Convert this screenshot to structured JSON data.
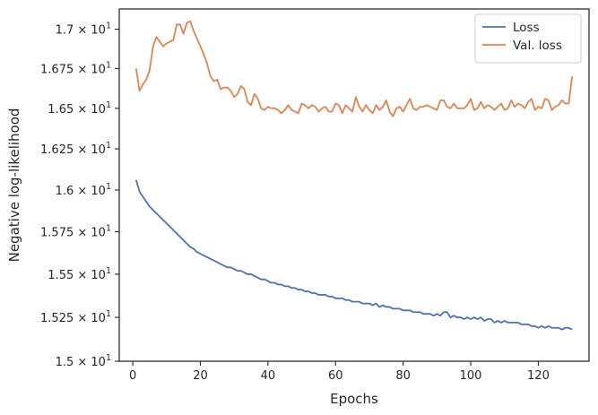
{
  "chart_data": {
    "type": "line",
    "xlabel": "Epochs",
    "ylabel": "Negative log-likelihood",
    "xlim": [
      -4,
      135
    ],
    "ylim": [
      15.0,
      17.13
    ],
    "y_scale": "log",
    "grid": false,
    "legend_position": "top-right",
    "x_ticks": [
      0,
      20,
      40,
      60,
      80,
      100,
      120
    ],
    "x_tick_labels": [
      "0",
      "20",
      "40",
      "60",
      "80",
      "100",
      "120"
    ],
    "y_ticks": [
      15.0,
      15.25,
      15.5,
      15.75,
      16.0,
      16.25,
      16.5,
      16.75,
      17.0
    ],
    "y_tick_mantissas": [
      "1.5",
      "1.525",
      "1.55",
      "1.575",
      "1.6",
      "1.625",
      "1.65",
      "1.675",
      "1.7"
    ],
    "y_tick_base": "× 10",
    "y_tick_exponent": "1",
    "series": [
      {
        "name": "Loss",
        "color": "#4c72b0",
        "x": [
          1,
          2,
          3,
          4,
          5,
          6,
          7,
          8,
          9,
          10,
          11,
          12,
          13,
          14,
          15,
          16,
          17,
          18,
          19,
          20,
          21,
          22,
          23,
          24,
          25,
          26,
          27,
          28,
          29,
          30,
          31,
          32,
          33,
          34,
          35,
          36,
          37,
          38,
          39,
          40,
          41,
          42,
          43,
          44,
          45,
          46,
          47,
          48,
          49,
          50,
          51,
          52,
          53,
          54,
          55,
          56,
          57,
          58,
          59,
          60,
          61,
          62,
          63,
          64,
          65,
          66,
          67,
          68,
          69,
          70,
          71,
          72,
          73,
          74,
          75,
          76,
          77,
          78,
          79,
          80,
          81,
          82,
          83,
          84,
          85,
          86,
          87,
          88,
          89,
          90,
          91,
          92,
          93,
          94,
          95,
          96,
          97,
          98,
          99,
          100,
          101,
          102,
          103,
          104,
          105,
          106,
          107,
          108,
          109,
          110,
          111,
          112,
          113,
          114,
          115,
          116,
          117,
          118,
          119,
          120,
          121,
          122,
          123,
          124,
          125,
          126,
          127,
          128,
          129,
          130
        ],
        "values": [
          16.06,
          15.99,
          15.96,
          15.93,
          15.9,
          15.88,
          15.86,
          15.84,
          15.82,
          15.8,
          15.78,
          15.76,
          15.74,
          15.72,
          15.7,
          15.68,
          15.66,
          15.65,
          15.63,
          15.62,
          15.61,
          15.6,
          15.59,
          15.58,
          15.57,
          15.56,
          15.55,
          15.54,
          15.54,
          15.53,
          15.52,
          15.52,
          15.51,
          15.5,
          15.5,
          15.49,
          15.48,
          15.47,
          15.47,
          15.46,
          15.45,
          15.45,
          15.44,
          15.44,
          15.43,
          15.43,
          15.42,
          15.42,
          15.41,
          15.41,
          15.4,
          15.4,
          15.39,
          15.39,
          15.38,
          15.38,
          15.38,
          15.37,
          15.37,
          15.36,
          15.36,
          15.36,
          15.35,
          15.35,
          15.34,
          15.34,
          15.34,
          15.33,
          15.33,
          15.33,
          15.32,
          15.33,
          15.31,
          15.32,
          15.31,
          15.31,
          15.3,
          15.3,
          15.3,
          15.29,
          15.29,
          15.29,
          15.28,
          15.28,
          15.28,
          15.27,
          15.27,
          15.27,
          15.26,
          15.27,
          15.26,
          15.28,
          15.28,
          15.25,
          15.26,
          15.25,
          15.25,
          15.24,
          15.25,
          15.24,
          15.25,
          15.24,
          15.25,
          15.23,
          15.24,
          15.24,
          15.22,
          15.23,
          15.22,
          15.23,
          15.22,
          15.22,
          15.22,
          15.22,
          15.21,
          15.21,
          15.21,
          15.2,
          15.2,
          15.19,
          15.2,
          15.19,
          15.2,
          15.19,
          15.19,
          15.19,
          15.18,
          15.19,
          15.19,
          15.18
        ]
      },
      {
        "name": "Val. loss",
        "color": "#dd8452",
        "x": [
          1,
          2,
          3,
          4,
          5,
          6,
          7,
          8,
          9,
          10,
          11,
          12,
          13,
          14,
          15,
          16,
          17,
          18,
          19,
          20,
          21,
          22,
          23,
          24,
          25,
          26,
          27,
          28,
          29,
          30,
          31,
          32,
          33,
          34,
          35,
          36,
          37,
          38,
          39,
          40,
          41,
          42,
          43,
          44,
          45,
          46,
          47,
          48,
          49,
          50,
          51,
          52,
          53,
          54,
          55,
          56,
          57,
          58,
          59,
          60,
          61,
          62,
          63,
          64,
          65,
          66,
          67,
          68,
          69,
          70,
          71,
          72,
          73,
          74,
          75,
          76,
          77,
          78,
          79,
          80,
          81,
          82,
          83,
          84,
          85,
          86,
          87,
          88,
          89,
          90,
          91,
          92,
          93,
          94,
          95,
          96,
          97,
          98,
          99,
          100,
          101,
          102,
          103,
          104,
          105,
          106,
          107,
          108,
          109,
          110,
          111,
          112,
          113,
          114,
          115,
          116,
          117,
          118,
          119,
          120,
          121,
          122,
          123,
          124,
          125,
          126,
          127,
          128,
          129,
          130
        ],
        "values": [
          16.75,
          16.61,
          16.65,
          16.68,
          16.74,
          16.89,
          16.95,
          16.92,
          16.89,
          16.91,
          16.92,
          16.93,
          17.03,
          17.03,
          16.97,
          17.04,
          17.05,
          16.99,
          16.94,
          16.89,
          16.84,
          16.78,
          16.7,
          16.67,
          16.68,
          16.62,
          16.63,
          16.63,
          16.61,
          16.57,
          16.59,
          16.64,
          16.62,
          16.54,
          16.52,
          16.59,
          16.56,
          16.5,
          16.49,
          16.51,
          16.5,
          16.5,
          16.49,
          16.47,
          16.49,
          16.52,
          16.49,
          16.48,
          16.47,
          16.53,
          16.52,
          16.5,
          16.52,
          16.51,
          16.48,
          16.5,
          16.51,
          16.48,
          16.48,
          16.53,
          16.52,
          16.47,
          16.52,
          16.5,
          16.48,
          16.57,
          16.51,
          16.48,
          16.52,
          16.49,
          16.47,
          16.52,
          16.49,
          16.51,
          16.55,
          16.48,
          16.45,
          16.5,
          16.51,
          16.48,
          16.52,
          16.56,
          16.5,
          16.49,
          16.51,
          16.51,
          16.52,
          16.51,
          16.5,
          16.49,
          16.55,
          16.55,
          16.51,
          16.5,
          16.53,
          16.5,
          16.5,
          16.5,
          16.52,
          16.56,
          16.49,
          16.5,
          16.54,
          16.5,
          16.52,
          16.51,
          16.49,
          16.51,
          16.53,
          16.49,
          16.5,
          16.55,
          16.51,
          16.53,
          16.52,
          16.5,
          16.54,
          16.56,
          16.49,
          16.51,
          16.5,
          16.56,
          16.55,
          16.49,
          16.51,
          16.52,
          16.55,
          16.53,
          16.53,
          16.7
        ]
      }
    ]
  }
}
